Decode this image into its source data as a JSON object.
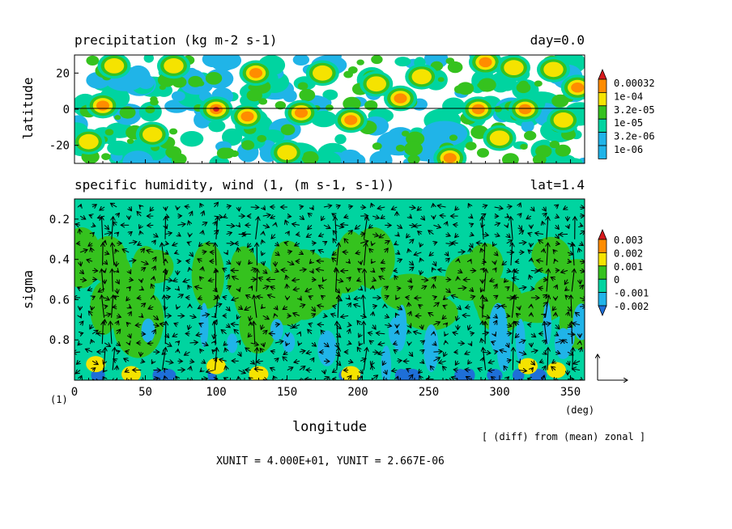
{
  "chart_data": [
    {
      "type": "heatmap",
      "title": "precipitation (kg m-2 s-1)",
      "title_right": "day=0.0",
      "ylabel": "latitude",
      "xlim": [
        0,
        360
      ],
      "ylim": [
        -30,
        30
      ],
      "yticks": [
        "20",
        "0",
        "-20"
      ],
      "colorbar": {
        "levels": [
          "0.00032",
          "1e-04",
          "3.2e-05",
          "1e-05",
          "3.2e-06",
          "1e-06"
        ],
        "colors": [
          "#d7191c",
          "#ff8c00",
          "#f5e300",
          "#35c21e",
          "#00d4a0",
          "#20b4e8"
        ]
      },
      "cells": [
        {
          "lon": 28,
          "lat": 24,
          "level": 2
        },
        {
          "lon": 70,
          "lat": 24,
          "level": 2
        },
        {
          "lon": 128,
          "lat": 20,
          "level": 3
        },
        {
          "lon": 213,
          "lat": 14,
          "level": 2
        },
        {
          "lon": 290,
          "lat": 26,
          "level": 3
        },
        {
          "lon": 310,
          "lat": 23,
          "level": 2
        },
        {
          "lon": 355,
          "lat": 12,
          "level": 3
        },
        {
          "lon": 338,
          "lat": 22,
          "level": 2
        },
        {
          "lon": 20,
          "lat": 2,
          "level": 3
        },
        {
          "lon": 100,
          "lat": 0,
          "level": 4
        },
        {
          "lon": 122,
          "lat": -4,
          "level": 3
        },
        {
          "lon": 160,
          "lat": -2,
          "level": 3
        },
        {
          "lon": 195,
          "lat": -6,
          "level": 3
        },
        {
          "lon": 230,
          "lat": 6,
          "level": 3
        },
        {
          "lon": 285,
          "lat": 0,
          "level": 3
        },
        {
          "lon": 318,
          "lat": 0,
          "level": 3
        },
        {
          "lon": 175,
          "lat": 20,
          "level": 2
        },
        {
          "lon": 245,
          "lat": 18,
          "level": 2
        },
        {
          "lon": 55,
          "lat": -14,
          "level": 2
        },
        {
          "lon": 150,
          "lat": -24,
          "level": 2
        },
        {
          "lon": 265,
          "lat": -27,
          "level": 3
        },
        {
          "lon": 300,
          "lat": -16,
          "level": 2
        },
        {
          "lon": 10,
          "lat": -18,
          "level": 2
        },
        {
          "lon": 345,
          "lat": -6,
          "level": 2
        }
      ]
    },
    {
      "type": "heatmap",
      "title": "specific humidity, wind (1, (m s-1, s-1))",
      "title_right": "lat=1.4",
      "xlabel": "longitude",
      "ylabel": "sigma",
      "xlim": [
        0,
        360
      ],
      "ylim": [
        0.1,
        1.0
      ],
      "xticks": [
        "0",
        "50",
        "100",
        "150",
        "200",
        "250",
        "300",
        "350"
      ],
      "x_unit": "(deg)",
      "y_unit": "(1)",
      "yticks": [
        "0.2",
        "0.4",
        "0.6",
        "0.8"
      ],
      "colorbar": {
        "levels": [
          "0.003",
          "0.002",
          "0.001",
          "0",
          "-0.001",
          "-0.002"
        ],
        "colors": [
          "#d7191c",
          "#ff8c00",
          "#f5e300",
          "#35c21e",
          "#00d4a0",
          "#20b4e8",
          "#1e6fd8"
        ]
      },
      "updraft_columns": [
        20,
        27,
        63,
        100,
        128,
        185,
        205,
        289,
        309,
        333,
        352
      ],
      "note": "[ (diff) from (mean) zonal ]",
      "units_line": "XUNIT = 4.000E+01, YUNIT = 2.667E-06"
    }
  ]
}
